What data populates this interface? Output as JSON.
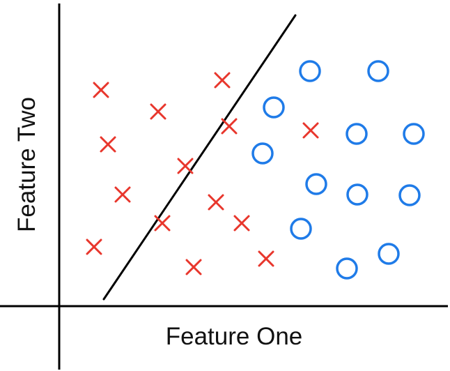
{
  "diagram": {
    "x_axis_label": "Feature One",
    "y_axis_label": "Feature Two",
    "colors": {
      "axes": "#000000",
      "boundary": "#000000",
      "class_x": "#e8362c",
      "class_o": "#1f7be8"
    },
    "marker_icons": {
      "class_x": "x-marker-icon",
      "class_o": "circle-marker-icon"
    }
  }
}
